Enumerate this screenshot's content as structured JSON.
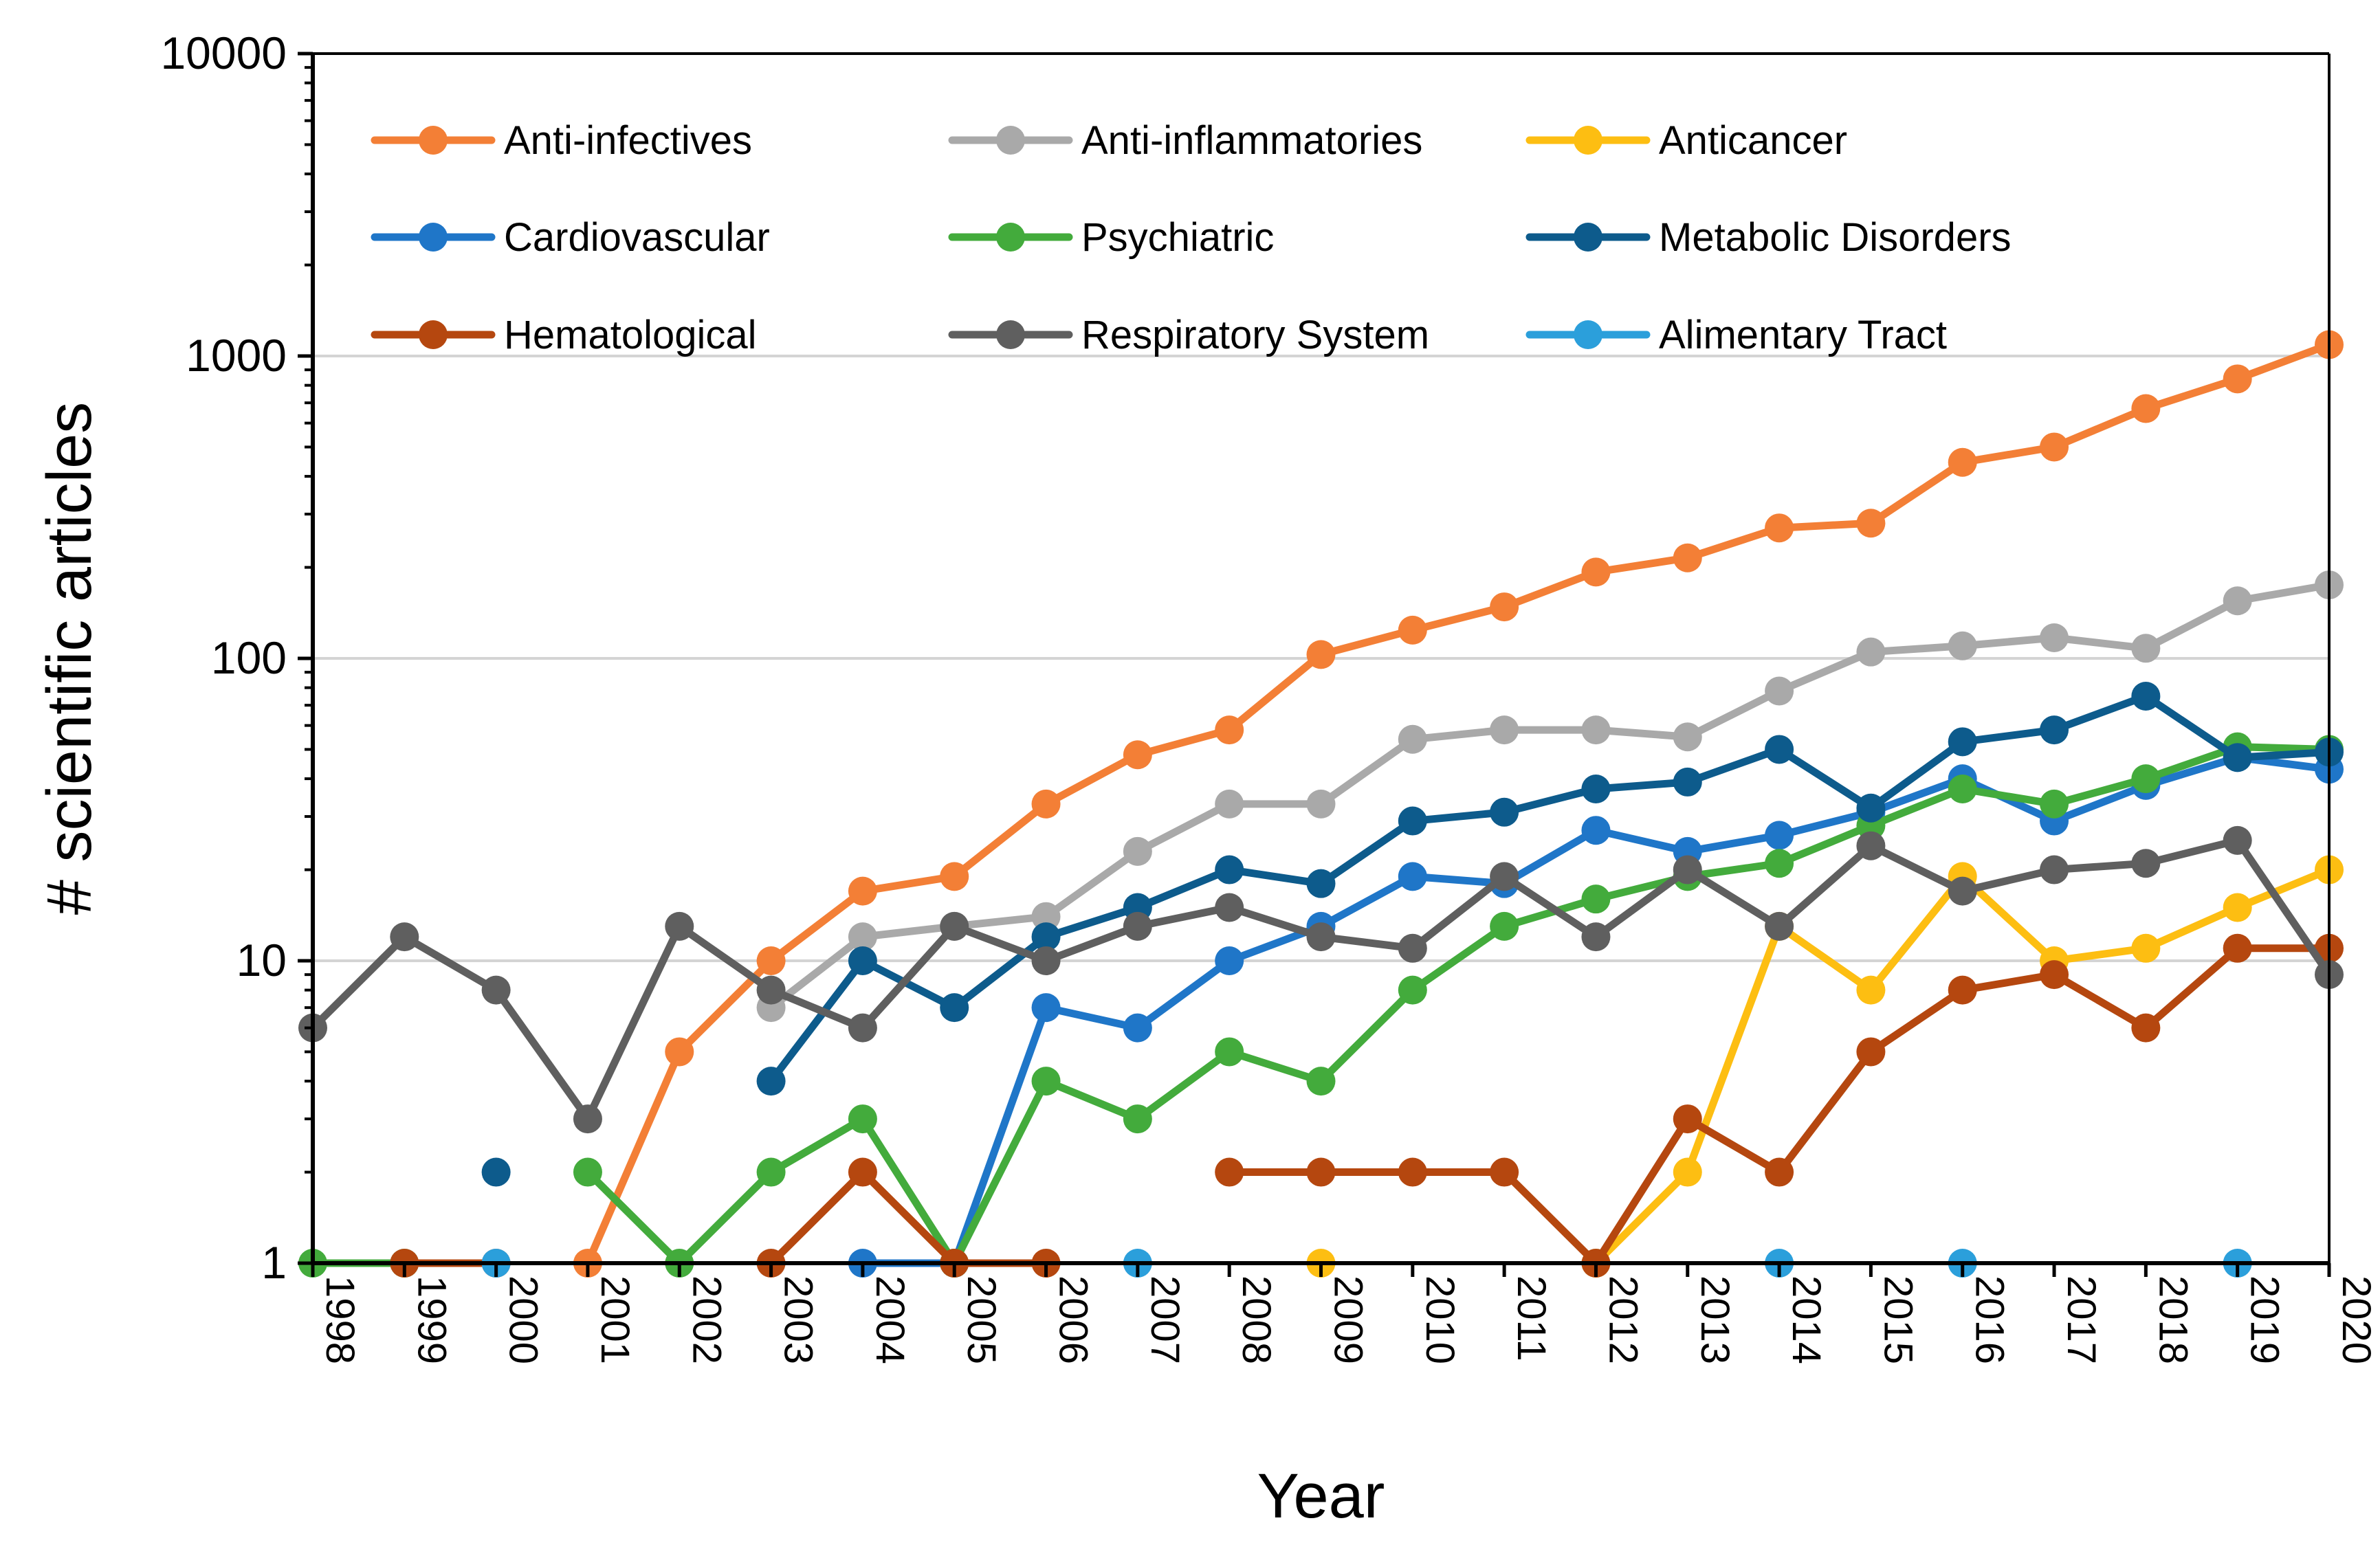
{
  "chart_data": {
    "type": "line",
    "title": "",
    "xlabel": "Year",
    "ylabel": "# scientific articles",
    "yscale": "log",
    "ylim": [
      1,
      10000
    ],
    "yticks": [
      1,
      10,
      100,
      1000,
      10000
    ],
    "ytick_labels": [
      "1",
      "10",
      "100",
      "1000",
      "10000"
    ],
    "grid": "horizontal major",
    "legend_position": "top-left, inside plot, 3 columns",
    "categories": [
      "1998",
      "1999",
      "2000",
      "2001",
      "2002",
      "2003",
      "2004",
      "2005",
      "2006",
      "2007",
      "2008",
      "2009",
      "2010",
      "2011",
      "2012",
      "2013",
      "2014",
      "2015",
      "2016",
      "2017",
      "2018",
      "2019",
      "2020"
    ],
    "series": [
      {
        "name": "Anti-infectives",
        "color": "#F37F36",
        "values": [
          null,
          null,
          null,
          1,
          5,
          10,
          17,
          19,
          33,
          48,
          58,
          103,
          124,
          148,
          193,
          215,
          270,
          280,
          445,
          500,
          670,
          840,
          1090
        ]
      },
      {
        "name": "Anti-inflammatories",
        "color": "#A9A9A9",
        "values": [
          null,
          null,
          null,
          null,
          null,
          7,
          12,
          13,
          14,
          23,
          33,
          33,
          54,
          58,
          58,
          55,
          78,
          105,
          110,
          117,
          108,
          155,
          175
        ]
      },
      {
        "name": "Anticancer",
        "color": "#FDBE12",
        "values": [
          null,
          null,
          null,
          null,
          null,
          null,
          null,
          null,
          null,
          null,
          null,
          1,
          null,
          null,
          1,
          2,
          13,
          8,
          19,
          10,
          11,
          15,
          20
        ]
      },
      {
        "name": "Cardiovascular",
        "color": "#1F76C8",
        "values": [
          null,
          null,
          null,
          null,
          null,
          null,
          1,
          1,
          7,
          6,
          10,
          13,
          19,
          18,
          27,
          23,
          26,
          31,
          40,
          29,
          38,
          47,
          43
        ]
      },
      {
        "name": "Psychiatric",
        "color": "#43AB3C",
        "values": [
          1,
          1,
          null,
          2,
          1,
          2,
          3,
          1,
          4,
          3,
          5,
          4,
          8,
          13,
          16,
          19,
          21,
          28,
          37,
          33,
          40,
          51,
          50
        ]
      },
      {
        "name": "Metabolic Disorders",
        "color": "#0D5B8C",
        "values": [
          null,
          null,
          2,
          null,
          null,
          4,
          10,
          7,
          12,
          15,
          20,
          18,
          29,
          31,
          37,
          39,
          50,
          32,
          53,
          58,
          75,
          47,
          49
        ]
      },
      {
        "name": "Hematological",
        "color": "#B5470F",
        "values": [
          null,
          1,
          1,
          null,
          null,
          1,
          2,
          1,
          1,
          null,
          2,
          2,
          2,
          2,
          1,
          3,
          2,
          5,
          8,
          9,
          6,
          11,
          11
        ]
      },
      {
        "name": "Respiratory System",
        "color": "#5F5F5F",
        "values": [
          6,
          12,
          8,
          3,
          13,
          8,
          6,
          13,
          10,
          13,
          15,
          12,
          11,
          19,
          12,
          20,
          13,
          24,
          17,
          20,
          21,
          25,
          9
        ]
      },
      {
        "name": "Alimentary Tract",
        "color": "#2B9FDB",
        "values": [
          null,
          null,
          1,
          null,
          null,
          null,
          null,
          null,
          null,
          1,
          null,
          null,
          null,
          null,
          null,
          null,
          1,
          null,
          1,
          null,
          null,
          1,
          null
        ]
      }
    ]
  }
}
